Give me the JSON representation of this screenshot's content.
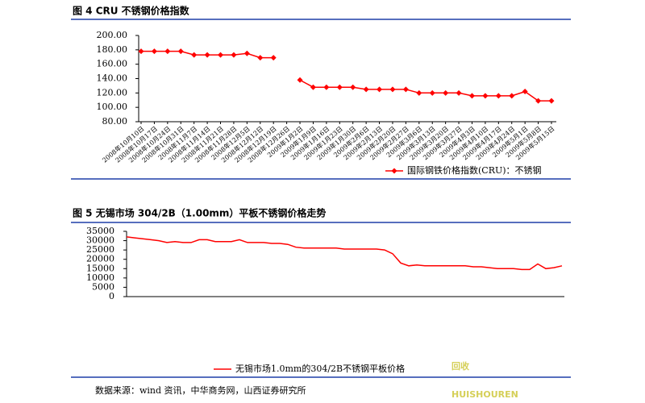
{
  "chart_data": [
    {
      "type": "line",
      "title": "图 4 CRU 不锈钢价格指数",
      "categories": [
        "2008年10月10日",
        "2008年10月17日",
        "2008年10月24日",
        "2008年10月31日",
        "2008年11月7日",
        "2008年11月14日",
        "2008年11月21日",
        "2008年11月28日",
        "2008年12月5日",
        "2008年12月12日",
        "2008年12月19日",
        "2008年12月26日",
        "2009年1月2日",
        "2009年1月9日",
        "2009年1月16日",
        "2009年1月23日",
        "2009年1月30日",
        "2009年2月6日",
        "2009年2月13日",
        "2009年2月20日",
        "2009年2月27日",
        "2009年3月6日",
        "2009年3月13日",
        "2009年3月20日",
        "2009年3月27日",
        "2009年4月3日",
        "2009年4月10日",
        "2009年4月17日",
        "2009年4月24日",
        "2009年5月1日",
        "2009年5月8日",
        "2009年5月15日"
      ],
      "series": [
        {
          "name": "国际钢铁价格指数(CRU)：不锈钢",
          "color": "#ff0000",
          "values": [
            178,
            178,
            178,
            178,
            173,
            173,
            173,
            173,
            175,
            169,
            169,
            null,
            138,
            128,
            128,
            128,
            128,
            125,
            125,
            125,
            125,
            120,
            120,
            120,
            120,
            116,
            116,
            116,
            116,
            122,
            109,
            109
          ]
        }
      ],
      "markers": true,
      "ylim": [
        80,
        200
      ],
      "yticks": [
        {
          "value": 80,
          "label": "80.00"
        },
        {
          "value": 100,
          "label": "100.00"
        },
        {
          "value": 120,
          "label": "120.00"
        },
        {
          "value": 140,
          "label": "140.00"
        },
        {
          "value": 160,
          "label": "160.00"
        },
        {
          "value": 180,
          "label": "180.00"
        },
        {
          "value": 200,
          "label": "200.00"
        }
      ]
    },
    {
      "type": "line",
      "title": "图 5 无锡市场 304/2B（1.00mm）平板不锈钢价格走势",
      "series": [
        {
          "name": "无锡市场1.0mm的304/2B不锈钢平板价格",
          "color": "#ff0000",
          "values": [
            32000,
            31500,
            31000,
            30500,
            30000,
            29000,
            29500,
            29000,
            29000,
            30500,
            30500,
            29500,
            29500,
            29500,
            30500,
            29000,
            29000,
            29000,
            28500,
            28500,
            28000,
            26500,
            26000,
            26000,
            26000,
            26000,
            26000,
            25500,
            25500,
            25500,
            25500,
            25500,
            25000,
            23000,
            18000,
            16500,
            17000,
            16500,
            16500,
            16500,
            16500,
            16500,
            16500,
            16000,
            16000,
            15500,
            15000,
            15000,
            15000,
            14500,
            14500,
            17500,
            15000,
            15500,
            16500
          ]
        }
      ],
      "markers": false,
      "ylim": [
        0,
        35000
      ],
      "yticks": [
        0,
        5000,
        10000,
        15000,
        20000,
        25000,
        30000,
        35000
      ]
    }
  ],
  "source": "数据来源：wind 资讯，中华商务网，山西证券研究所",
  "watermark": {
    "text": "回收",
    "subtext": "HUISHOUREN"
  }
}
